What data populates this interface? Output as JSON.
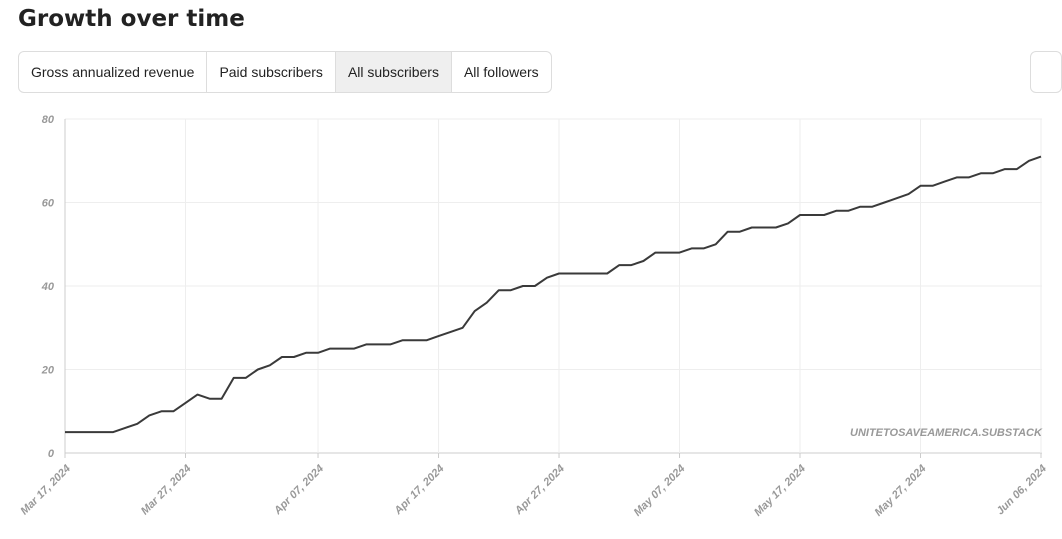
{
  "page": {
    "title": "Growth over time",
    "tabs": [
      {
        "label": "Gross annualized revenue",
        "active": false
      },
      {
        "label": "Paid subscribers",
        "active": false
      },
      {
        "label": "All subscribers",
        "active": true
      },
      {
        "label": "All followers",
        "active": false
      }
    ]
  },
  "chart_data": {
    "type": "line",
    "color": "#3a3a3a",
    "grid": true,
    "annotation": "UNITETOSAVEAMERICA.SUBSTACK",
    "x": [
      "2024-03-17",
      "2024-03-18",
      "2024-03-19",
      "2024-03-20",
      "2024-03-21",
      "2024-03-22",
      "2024-03-23",
      "2024-03-24",
      "2024-03-25",
      "2024-03-26",
      "2024-03-27",
      "2024-03-28",
      "2024-03-29",
      "2024-03-30",
      "2024-03-31",
      "2024-04-01",
      "2024-04-02",
      "2024-04-03",
      "2024-04-04",
      "2024-04-05",
      "2024-04-06",
      "2024-04-07",
      "2024-04-08",
      "2024-04-09",
      "2024-04-10",
      "2024-04-11",
      "2024-04-12",
      "2024-04-13",
      "2024-04-14",
      "2024-04-15",
      "2024-04-16",
      "2024-04-17",
      "2024-04-18",
      "2024-04-19",
      "2024-04-20",
      "2024-04-21",
      "2024-04-22",
      "2024-04-23",
      "2024-04-24",
      "2024-04-25",
      "2024-04-26",
      "2024-04-27",
      "2024-04-28",
      "2024-04-29",
      "2024-04-30",
      "2024-05-01",
      "2024-05-02",
      "2024-05-03",
      "2024-05-04",
      "2024-05-05",
      "2024-05-06",
      "2024-05-07",
      "2024-05-08",
      "2024-05-09",
      "2024-05-10",
      "2024-05-11",
      "2024-05-12",
      "2024-05-13",
      "2024-05-14",
      "2024-05-15",
      "2024-05-16",
      "2024-05-17",
      "2024-05-18",
      "2024-05-19",
      "2024-05-20",
      "2024-05-21",
      "2024-05-22",
      "2024-05-23",
      "2024-05-24",
      "2024-05-25",
      "2024-05-26",
      "2024-05-27",
      "2024-05-28",
      "2024-05-29",
      "2024-05-30",
      "2024-05-31",
      "2024-06-01",
      "2024-06-02",
      "2024-06-03",
      "2024-06-04",
      "2024-06-05",
      "2024-06-06"
    ],
    "values": [
      5,
      5,
      5,
      5,
      5,
      6,
      7,
      9,
      10,
      10,
      12,
      14,
      13,
      13,
      18,
      18,
      20,
      21,
      23,
      23,
      24,
      24,
      25,
      25,
      25,
      26,
      26,
      26,
      27,
      27,
      27,
      28,
      29,
      30,
      34,
      36,
      39,
      39,
      40,
      40,
      42,
      43,
      43,
      43,
      43,
      43,
      45,
      45,
      46,
      48,
      48,
      48,
      49,
      49,
      50,
      53,
      53,
      54,
      54,
      54,
      55,
      57,
      57,
      57,
      58,
      58,
      59,
      59,
      60,
      61,
      62,
      64,
      64,
      65,
      66,
      66,
      67,
      67,
      68,
      68,
      70,
      71
    ],
    "xlim": [
      "2024-03-17",
      "2024-06-06"
    ],
    "xticks": [
      {
        "value": "2024-03-17",
        "label": "Mar 17, 2024"
      },
      {
        "value": "2024-03-27",
        "label": "Mar 27, 2024"
      },
      {
        "value": "2024-04-07",
        "label": "Apr 07, 2024"
      },
      {
        "value": "2024-04-17",
        "label": "Apr 17, 2024"
      },
      {
        "value": "2024-04-27",
        "label": "Apr 27, 2024"
      },
      {
        "value": "2024-05-07",
        "label": "May 07, 2024"
      },
      {
        "value": "2024-05-17",
        "label": "May 17, 2024"
      },
      {
        "value": "2024-05-27",
        "label": "May 27, 2024"
      },
      {
        "value": "2024-06-06",
        "label": "Jun 06, 2024"
      }
    ],
    "ylim": [
      0,
      80
    ],
    "yticks": [
      0,
      20,
      40,
      60,
      80
    ]
  }
}
